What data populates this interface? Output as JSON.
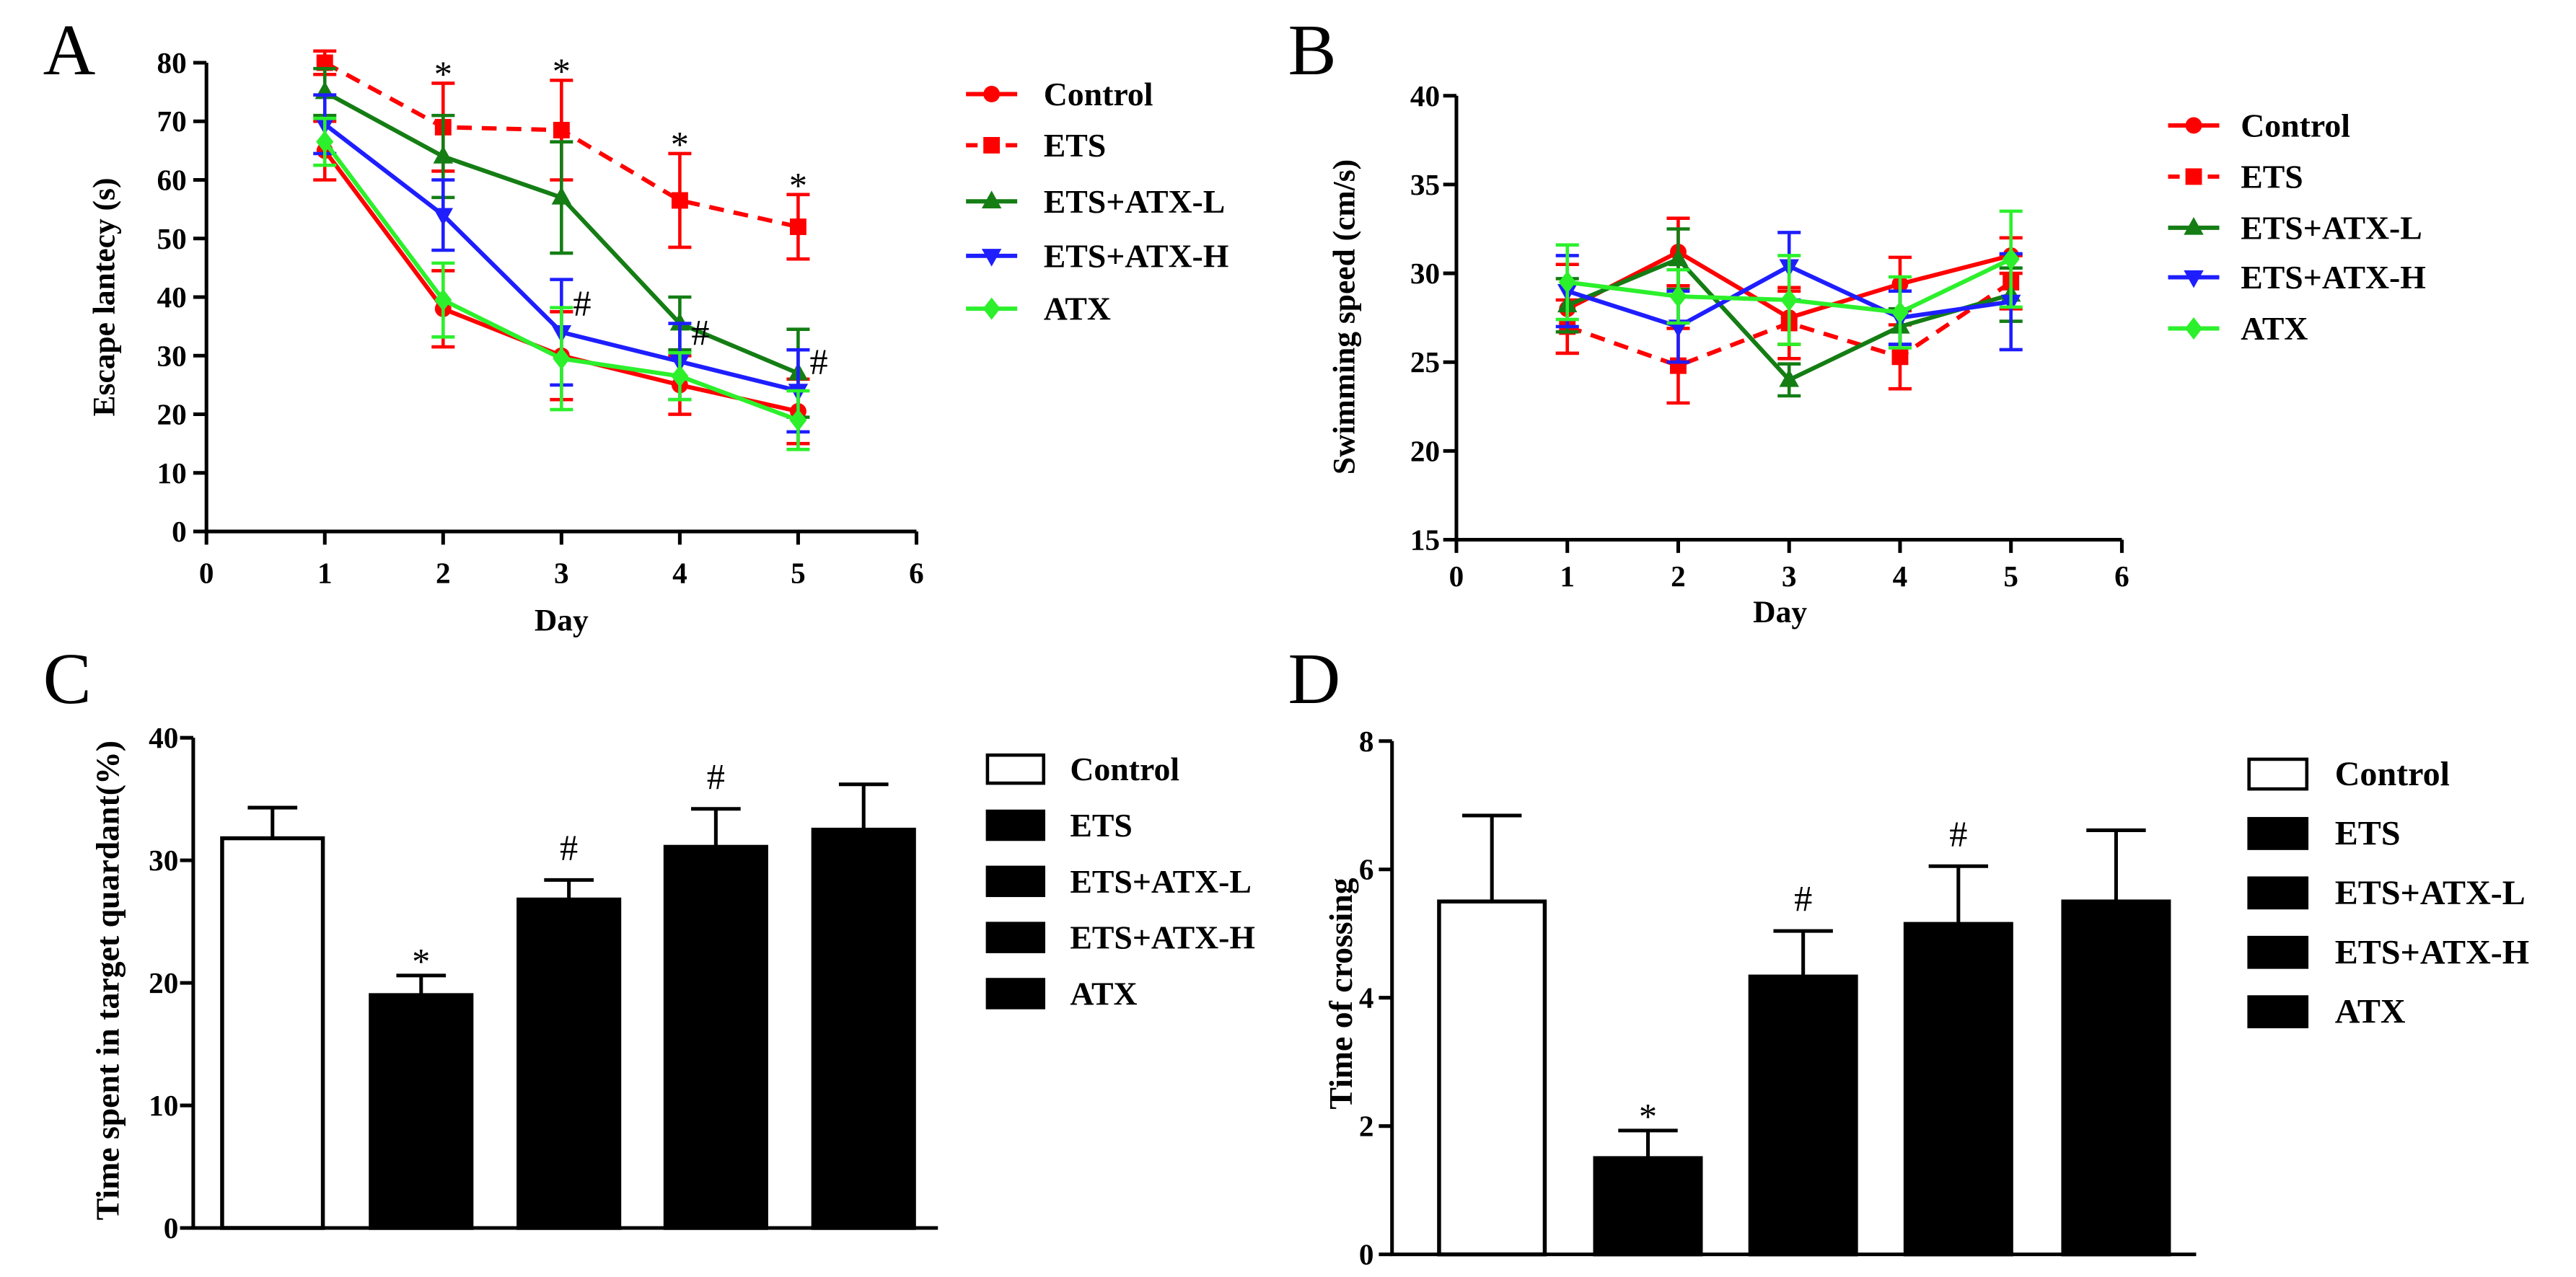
{
  "chart_data": [
    {
      "panel": "A",
      "type": "line",
      "xlabel": "Day",
      "ylabel": "Escape lantecy (s)",
      "xlim": [
        0,
        6
      ],
      "ylim": [
        0,
        80
      ],
      "xticks": [
        0,
        1,
        2,
        3,
        4,
        5,
        6
      ],
      "yticks": [
        0,
        10,
        20,
        30,
        40,
        50,
        60,
        70,
        80
      ],
      "x": [
        1,
        2,
        3,
        4,
        5
      ],
      "legend": "right",
      "series": [
        {
          "name": "Control",
          "color": "#ff0000",
          "dash": "solid",
          "marker": "circle",
          "values": [
            65,
            38,
            30,
            25,
            20.5
          ],
          "errors": [
            5,
            6.5,
            7.5,
            5,
            5.5
          ]
        },
        {
          "name": "ETS",
          "color": "#ff0000",
          "dash": "dashed",
          "marker": "square",
          "values": [
            80,
            69,
            68.5,
            56.5,
            52
          ],
          "errors": [
            2,
            7.5,
            8.5,
            8,
            5.5
          ]
        },
        {
          "name": "ETS+ATX-L",
          "color": "#147d14",
          "dash": "solid",
          "marker": "triangle-up",
          "values": [
            75,
            64,
            57,
            35.5,
            27
          ],
          "errors": [
            4,
            7,
            9.5,
            4.5,
            7.5
          ]
        },
        {
          "name": "ETS+ATX-H",
          "color": "#1e1eff",
          "dash": "solid",
          "marker": "triangle-down",
          "values": [
            69.5,
            54,
            34,
            29,
            24
          ],
          "errors": [
            5,
            6,
            9,
            6.5,
            7
          ]
        },
        {
          "name": "ATX",
          "color": "#2cf02c",
          "dash": "solid",
          "marker": "diamond",
          "values": [
            66.5,
            39.5,
            29.5,
            26.5,
            19
          ],
          "errors": [
            4,
            6.3,
            8.7,
            4,
            5
          ]
        }
      ],
      "annotations": [
        {
          "text": "*",
          "series": "ETS",
          "x": 2,
          "position": "above"
        },
        {
          "text": "*",
          "series": "ETS",
          "x": 3,
          "position": "above"
        },
        {
          "text": "*",
          "series": "ETS",
          "x": 4,
          "position": "above"
        },
        {
          "text": "*",
          "series": "ETS",
          "x": 5,
          "position": "above"
        },
        {
          "text": "#",
          "series": "ETS+ATX-H",
          "x": 3,
          "position": "right"
        },
        {
          "text": "#",
          "series": "ETS+ATX-H",
          "x": 4,
          "position": "right"
        },
        {
          "text": "#",
          "series": "ETS+ATX-H",
          "x": 5,
          "position": "right"
        }
      ]
    },
    {
      "panel": "B",
      "type": "line",
      "xlabel": "Day",
      "ylabel": "Swimming speed (cm/s)",
      "xlim": [
        0,
        6
      ],
      "ylim": [
        15,
        40
      ],
      "xticks": [
        0,
        1,
        2,
        3,
        4,
        5,
        6
      ],
      "yticks": [
        15,
        20,
        25,
        30,
        35,
        40
      ],
      "x": [
        1,
        2,
        3,
        4,
        5
      ],
      "legend": "right",
      "series": [
        {
          "name": "Control",
          "color": "#ff0000",
          "dash": "solid",
          "marker": "circle",
          "values": [
            28,
            31.2,
            27.5,
            29.4,
            31
          ],
          "errors": [
            2.5,
            1.9,
            1.5,
            1.5,
            1
          ]
        },
        {
          "name": "ETS",
          "color": "#ff0000",
          "dash": "dashed",
          "marker": "square",
          "values": [
            27,
            24.8,
            27.2,
            25.3,
            29.5
          ],
          "errors": [
            1.5,
            2.1,
            2,
            1.8,
            1.5
          ]
        },
        {
          "name": "ETS+ATX-L",
          "color": "#147d14",
          "dash": "solid",
          "marker": "triangle-up",
          "values": [
            28.2,
            30.8,
            24,
            27,
            28.8
          ],
          "errors": [
            1.5,
            1.7,
            0.9,
            1,
            1.5
          ]
        },
        {
          "name": "ETS+ATX-H",
          "color": "#1e1eff",
          "dash": "solid",
          "marker": "triangle-down",
          "values": [
            29,
            27,
            30.4,
            27.5,
            28.4
          ],
          "errors": [
            2,
            2,
            1.9,
            1.5,
            2.7
          ]
        },
        {
          "name": "ATX",
          "color": "#2cf02c",
          "dash": "solid",
          "marker": "diamond",
          "values": [
            29.5,
            28.7,
            28.5,
            27.8,
            30.8
          ],
          "errors": [
            2.1,
            1.5,
            2.5,
            2,
            2.7
          ]
        }
      ],
      "annotations": []
    },
    {
      "panel": "C",
      "type": "bar",
      "ylabel": "Time spent in target quardant(%)",
      "ylim": [
        0,
        40
      ],
      "yticks": [
        0,
        10,
        20,
        30,
        40
      ],
      "legend": "right",
      "categories": [
        "Control",
        "ETS",
        "ETS+ATX-L",
        "ETS+ATX-H",
        "ATX"
      ],
      "values": [
        31.8,
        19.0,
        26.8,
        31.1,
        32.5
      ],
      "errors": [
        2.5,
        1.6,
        1.6,
        3.1,
        3.7
      ],
      "fills": [
        "#ffffff",
        "#000000",
        "#000000",
        "#000000",
        "#000000"
      ],
      "annotations": [
        {
          "text": "*",
          "category": "ETS",
          "position": "above"
        },
        {
          "text": "#",
          "category": "ETS+ATX-L",
          "position": "above"
        },
        {
          "text": "#",
          "category": "ETS+ATX-H",
          "position": "above"
        }
      ]
    },
    {
      "panel": "D",
      "type": "bar",
      "ylabel": "Time of crossing",
      "ylim": [
        0,
        8
      ],
      "yticks": [
        0,
        2,
        4,
        6,
        8
      ],
      "legend": "right",
      "categories": [
        "Control",
        "ETS",
        "ETS+ATX-L",
        "ETS+ATX-H",
        "ATX"
      ],
      "values": [
        5.5,
        1.5,
        4.33,
        5.15,
        5.5
      ],
      "errors": [
        1.34,
        0.43,
        0.71,
        0.9,
        1.11
      ],
      "fills": [
        "#ffffff",
        "#000000",
        "#000000",
        "#000000",
        "#000000"
      ],
      "annotations": [
        {
          "text": "*",
          "category": "ETS",
          "position": "above"
        },
        {
          "text": "#",
          "category": "ETS+ATX-L",
          "position": "above"
        },
        {
          "text": "#",
          "category": "ETS+ATX-H",
          "position": "above"
        }
      ]
    }
  ]
}
